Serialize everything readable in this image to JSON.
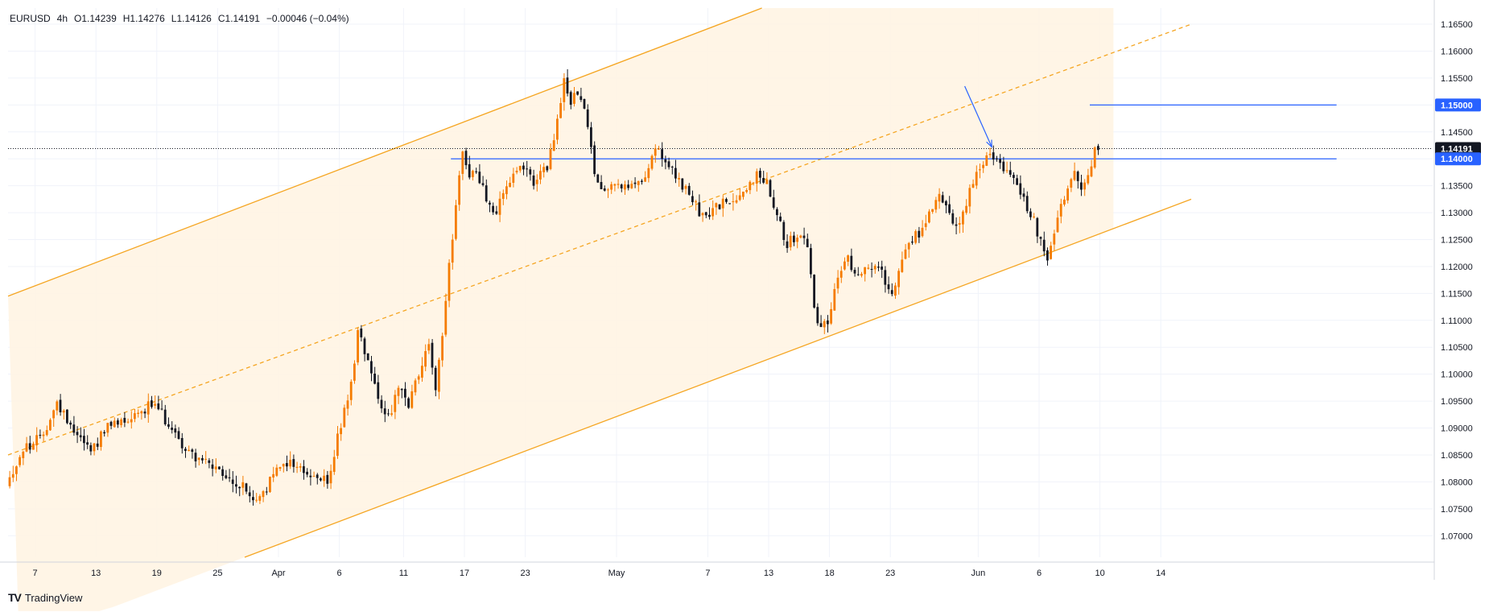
{
  "header": {
    "symbol": "EURUSD",
    "timeframe": "4h",
    "open": "O1.14239",
    "high": "H1.14276",
    "low": "L1.14126",
    "close": "C1.14191",
    "change": "−0.00046 (−0.04%)"
  },
  "brand": {
    "name": "TradingView"
  },
  "colors": {
    "up": "#f57c00",
    "down": "#131722",
    "channel_line": "#f5a623",
    "channel_fill": "#fff4e3",
    "level_line": "#2962ff",
    "grid": "#f0f3fa"
  },
  "chart_data": {
    "type": "candlestick",
    "symbol": "EURUSD",
    "interval": "4h",
    "ylim": [
      1.066,
      1.168
    ],
    "x_tick_labels": [
      "7",
      "13",
      "19",
      "25",
      "Apr",
      "6",
      "11",
      "17",
      "23",
      "May",
      "7",
      "13",
      "18",
      "23",
      "Jun",
      "6",
      "10",
      "14"
    ],
    "y_tick_labels": [
      "1.16500",
      "1.16000",
      "1.15500",
      "1.15000",
      "1.14500",
      "1.14000",
      "1.13500",
      "1.13000",
      "1.12500",
      "1.12000",
      "1.11500",
      "1.11000",
      "1.10500",
      "1.10000",
      "1.09500",
      "1.09000",
      "1.08500",
      "1.08000",
      "1.07500",
      "1.07000"
    ],
    "price_labels": [
      {
        "value": "1.15000",
        "kind": "level"
      },
      {
        "value": "1.14191",
        "kind": "last"
      },
      {
        "value": "1.14000",
        "kind": "level"
      }
    ],
    "price_path": [
      [
        0,
        1.0795
      ],
      [
        5,
        1.086
      ],
      [
        10,
        1.088
      ],
      [
        15,
        1.0945
      ],
      [
        20,
        1.09
      ],
      [
        25,
        1.086
      ],
      [
        30,
        1.09
      ],
      [
        36,
        1.092
      ],
      [
        43,
        1.0945
      ],
      [
        48,
        1.091
      ],
      [
        53,
        1.086
      ],
      [
        58,
        1.084
      ],
      [
        62,
        1.082
      ],
      [
        66,
        1.08
      ],
      [
        70,
        1.079
      ],
      [
        74,
        1.076
      ],
      [
        78,
        1.08
      ],
      [
        82,
        1.084
      ],
      [
        86,
        1.083
      ],
      [
        90,
        1.081
      ],
      [
        95,
        1.08
      ],
      [
        98,
        1.088
      ],
      [
        102,
        1.098
      ],
      [
        104,
        1.108
      ],
      [
        107,
        1.103
      ],
      [
        110,
        1.096
      ],
      [
        113,
        1.092
      ],
      [
        116,
        1.097
      ],
      [
        119,
        1.094
      ],
      [
        122,
        1.1
      ],
      [
        125,
        1.106
      ],
      [
        127,
        1.096
      ],
      [
        129,
        1.108
      ],
      [
        131,
        1.12
      ],
      [
        133,
        1.132
      ],
      [
        135,
        1.142
      ],
      [
        137,
        1.136
      ],
      [
        139,
        1.138
      ],
      [
        142,
        1.133
      ],
      [
        145,
        1.13
      ],
      [
        148,
        1.135
      ],
      [
        152,
        1.138
      ],
      [
        156,
        1.136
      ],
      [
        160,
        1.138
      ],
      [
        163,
        1.147
      ],
      [
        165,
        1.154
      ],
      [
        167,
        1.151
      ],
      [
        170,
        1.152
      ],
      [
        172,
        1.145
      ],
      [
        174,
        1.138
      ],
      [
        177,
        1.134
      ],
      [
        180,
        1.136
      ],
      [
        184,
        1.134
      ],
      [
        188,
        1.136
      ],
      [
        192,
        1.142
      ],
      [
        196,
        1.138
      ],
      [
        199,
        1.136
      ],
      [
        203,
        1.132
      ],
      [
        206,
        1.129
      ],
      [
        210,
        1.131
      ],
      [
        214,
        1.132
      ],
      [
        218,
        1.134
      ],
      [
        222,
        1.137
      ],
      [
        225,
        1.136
      ],
      [
        228,
        1.13
      ],
      [
        231,
        1.124
      ],
      [
        234,
        1.126
      ],
      [
        237,
        1.124
      ],
      [
        239,
        1.112
      ],
      [
        241,
        1.109
      ],
      [
        243,
        1.11
      ],
      [
        246,
        1.118
      ],
      [
        249,
        1.121
      ],
      [
        252,
        1.119
      ],
      [
        255,
        1.12
      ],
      [
        259,
        1.119
      ],
      [
        262,
        1.115
      ],
      [
        264,
        1.12
      ],
      [
        267,
        1.125
      ],
      [
        270,
        1.126
      ],
      [
        273,
        1.13
      ],
      [
        276,
        1.134
      ],
      [
        279,
        1.13
      ],
      [
        282,
        1.127
      ],
      [
        285,
        1.134
      ],
      [
        288,
        1.138
      ],
      [
        291,
        1.141
      ],
      [
        294,
        1.139
      ],
      [
        297,
        1.137
      ],
      [
        300,
        1.133
      ],
      [
        303,
        1.13
      ],
      [
        306,
        1.125
      ],
      [
        308,
        1.122
      ],
      [
        310,
        1.127
      ],
      [
        313,
        1.133
      ],
      [
        316,
        1.137
      ],
      [
        318,
        1.134
      ],
      [
        320,
        1.136
      ],
      [
        322,
        1.142
      ]
    ],
    "total_bars": 323,
    "channel": {
      "upper": {
        "from": [
          0,
          1.1145
        ],
        "to": [
          223,
          1.168
        ]
      },
      "middle": {
        "from": [
          0,
          1.085
        ],
        "to": [
          350,
          1.165
        ]
      },
      "lower": {
        "from": [
          70,
          1.066
        ],
        "to": [
          350,
          1.1325
        ]
      }
    },
    "levels": [
      {
        "value": 1.14,
        "from_bar": 131,
        "to_bar": 393
      },
      {
        "value": 1.15,
        "from_bar": 320,
        "to_bar": 393
      }
    ],
    "last_price": 1.14191,
    "annotations": [
      {
        "type": "arrow",
        "from": [
          283,
          1.1535
        ],
        "to": [
          291,
          1.1422
        ]
      }
    ],
    "grid": true
  }
}
